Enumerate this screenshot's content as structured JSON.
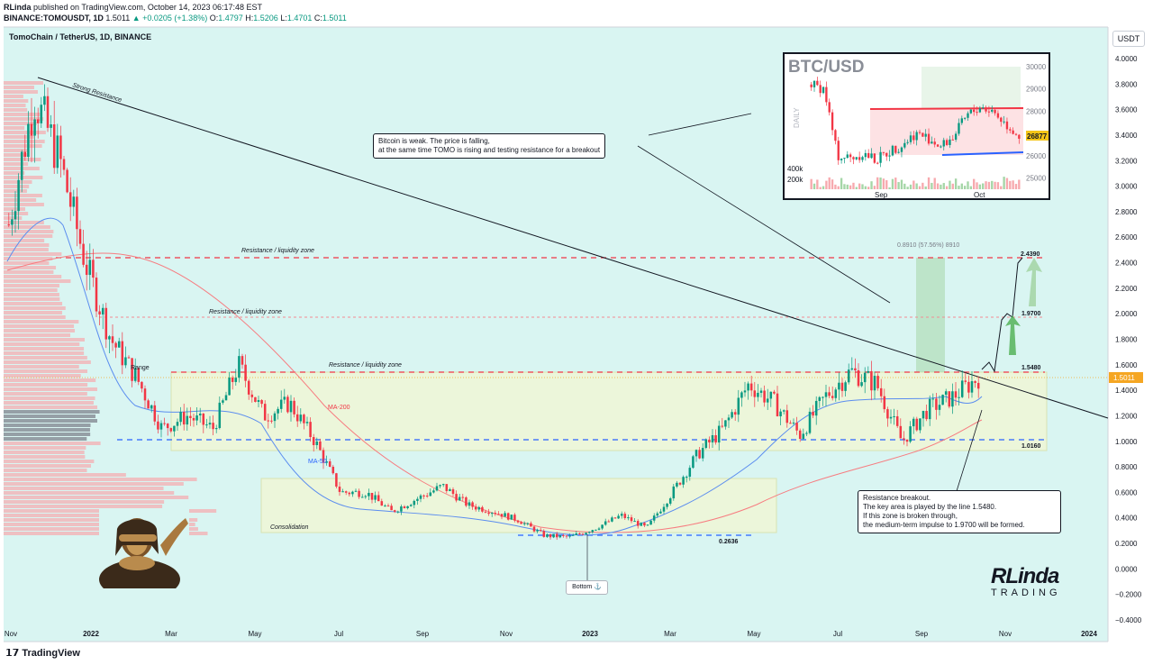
{
  "header": {
    "line1_user": "RLinda",
    "line1_rest": " published on TradingView.com, October 14, 2023 06:17:48 EST",
    "symbol": "BINANCE:TOMOUSDT, 1D",
    "last": "1.5011",
    "change": "▲ +0.0205 (+1.38%)",
    "o_label": "O:",
    "o": "1.4797",
    "h_label": "H:",
    "h": "1.5206",
    "l_label": "L:",
    "l": "1.4701",
    "c_label": "C:",
    "c": "1.5011"
  },
  "chart_title": "TomoChain / TetherUS, 1D, BINANCE",
  "currency_button": "USDT",
  "footer_logo": "TradingView",
  "colors": {
    "up": "#089981",
    "down": "#f23645",
    "ma50": "#2962ff",
    "ma200": "#f77c80",
    "resistance": "#f23645",
    "support": "#2962ff",
    "zone_fill": "#eef6d6"
  },
  "annotations": {
    "strong_resistance": "Strong Resistance",
    "res_zone_1": "Resistance / liquidity zone",
    "res_zone_2": "Resistance / liquidity zone",
    "res_zone_3": "Resistance / liquidity zone",
    "range": "Range",
    "ma200": "MA-200",
    "ma50": "MA-50",
    "consolidation": "Consolidation",
    "bottom": "Bottom ⚓",
    "measure": "0.8910 (57.56%) 8910",
    "level_2439": "2.4390",
    "level_1970": "1.9700",
    "level_1548": "1.5480",
    "level_1016": "1.0160",
    "level_02636": "0.2636",
    "price_tag": "1.5011"
  },
  "note_btc": {
    "line1": "Bitcoin is weak. The price is falling,",
    "line2": "at the same time TOMO is rising and testing resistance for a breakout"
  },
  "note_breakout": {
    "line1": "Resistance breakout.",
    "line2": "The key area is played by the line 1.5480.",
    "line3": "If this zone is broken through,",
    "line4": "the medium-term impulse to 1.9700 will be formed."
  },
  "inset": {
    "title": "BTC/USD",
    "daily": "DAILY",
    "price_labels": [
      "30000",
      "29000",
      "28000",
      "27000",
      "26000",
      "25000"
    ],
    "price_tag": "26877",
    "vol_labels": [
      "400k",
      "200k"
    ],
    "x_labels": [
      "Sep",
      "Oct"
    ]
  },
  "brand": {
    "big": "RLinda",
    "small": "TRADING"
  },
  "chart_data": {
    "type": "line",
    "title": "TomoChain / TetherUS, 1D, BINANCE",
    "series": [
      {
        "name": "TOMOUSDT",
        "x": [
          "2021-11",
          "2021-11-20",
          "2021-12",
          "2021-12-15",
          "2022-01",
          "2022-01-15",
          "2022-02",
          "2022-02-15",
          "2022-03",
          "2022-03-15",
          "2022-04",
          "2022-04-15",
          "2022-05",
          "2022-05-15",
          "2022-06",
          "2022-07",
          "2022-08",
          "2022-08-15",
          "2022-09",
          "2022-10",
          "2022-11",
          "2022-11-20",
          "2022-12",
          "2023-01",
          "2023-02",
          "2023-03",
          "2023-04",
          "2023-05",
          "2023-05-20",
          "2023-06",
          "2023-06-15",
          "2023-07",
          "2023-07-15",
          "2023-08",
          "2023-08-20",
          "2023-09",
          "2023-09-15",
          "2023-10",
          "2023-10-14"
        ],
        "values": [
          2.7,
          3.7,
          3.2,
          2.4,
          1.8,
          1.5,
          1.1,
          1.2,
          1.1,
          1.6,
          1.2,
          1.3,
          1.0,
          0.6,
          0.6,
          0.45,
          0.55,
          0.65,
          0.5,
          0.45,
          0.38,
          0.26,
          0.25,
          0.32,
          0.42,
          0.32,
          0.6,
          0.9,
          1.1,
          1.45,
          1.3,
          1.05,
          1.35,
          1.55,
          1.45,
          1.0,
          1.25,
          1.35,
          1.5011
        ]
      }
    ],
    "ylim": [
      -0.4,
      4.0
    ],
    "ylabel": "",
    "yticks": [
      "4.0000",
      "3.8000",
      "3.6000",
      "3.4000",
      "3.2000",
      "3.0000",
      "2.8000",
      "2.6000",
      "2.4000",
      "2.2000",
      "2.0000",
      "1.8000",
      "1.6000",
      "1.4000",
      "1.2000",
      "1.0000",
      "0.8000",
      "0.6000",
      "0.4000",
      "0.2000",
      "0.0000",
      "−0.2000",
      "−0.4000"
    ],
    "xticks": [
      "Nov",
      "2022",
      "Mar",
      "May",
      "Jul",
      "Sep",
      "Nov",
      "2023",
      "Mar",
      "May",
      "Jul",
      "Sep",
      "Nov",
      "2024"
    ],
    "levels": [
      2.439,
      1.97,
      1.548,
      1.016,
      0.2636
    ]
  }
}
